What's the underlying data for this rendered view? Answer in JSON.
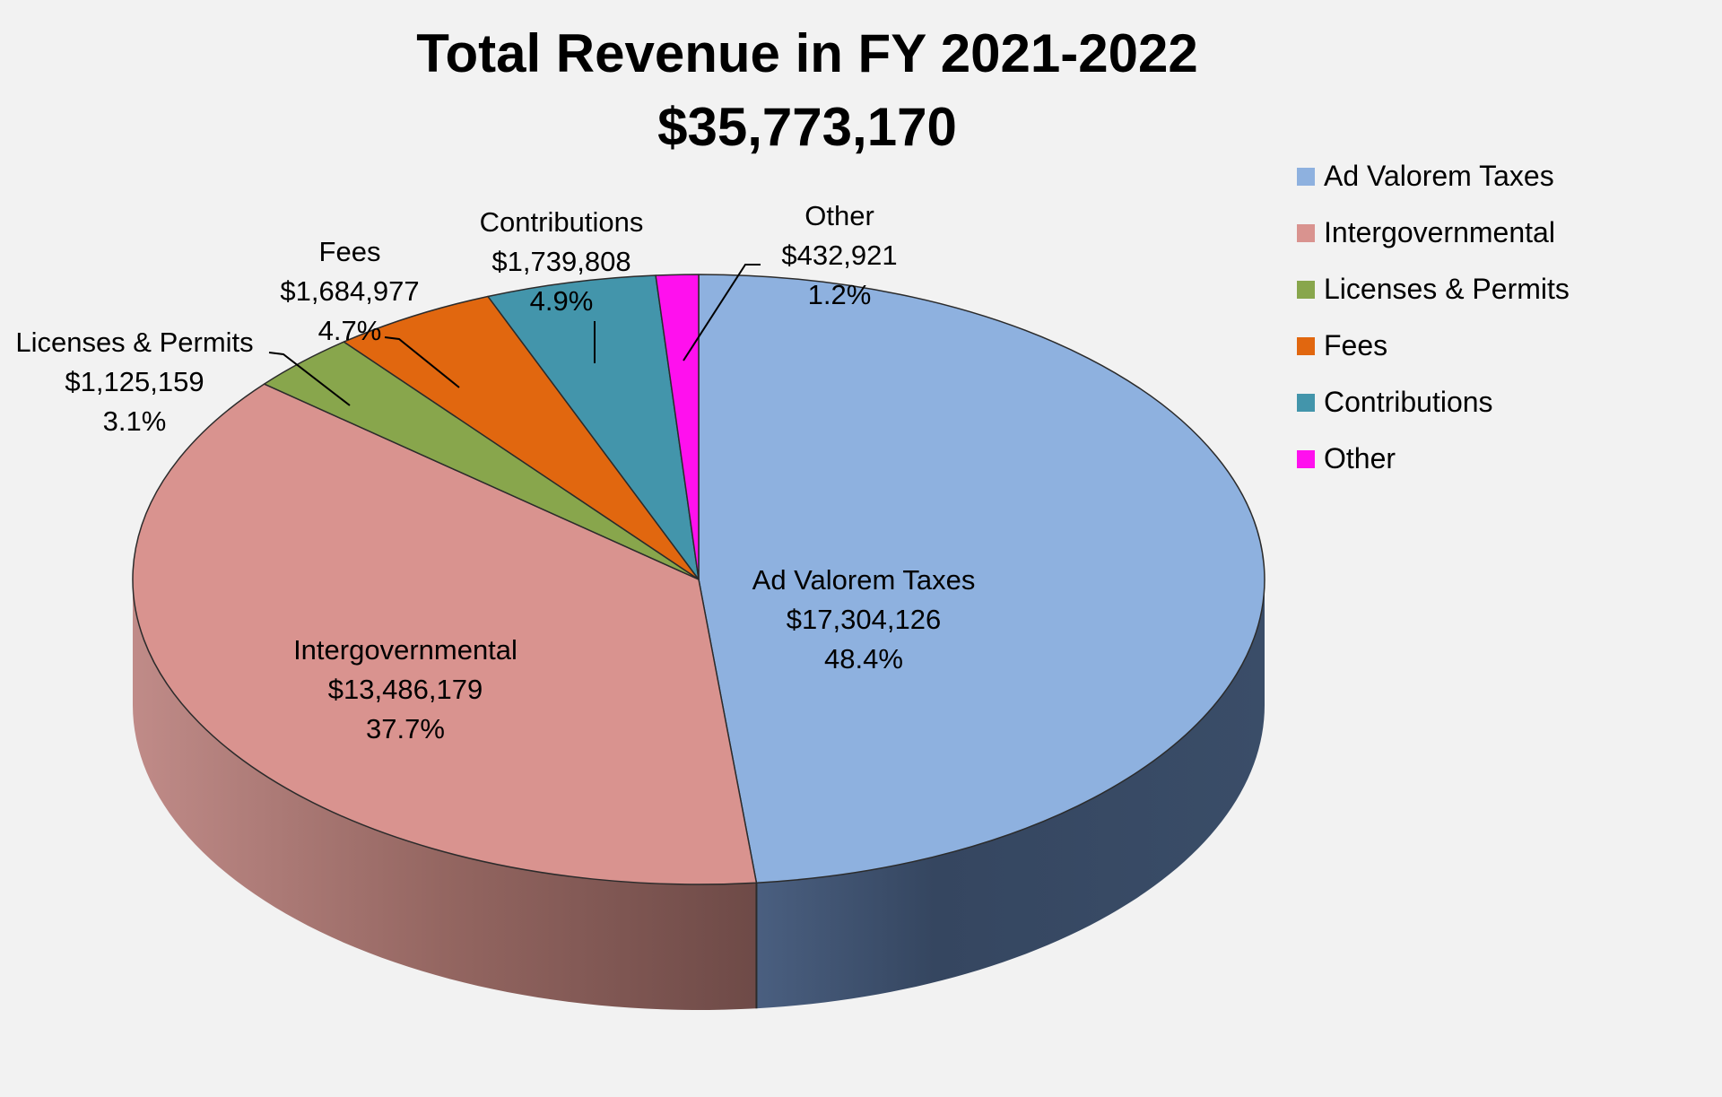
{
  "chart_data": {
    "type": "pie",
    "title": "Total Revenue in FY 2021-2022",
    "subtitle": "$35,773,170",
    "legend_position": "right",
    "slices": [
      {
        "name": "Ad Valorem Taxes",
        "value": 17304126,
        "value_label": "$17,304,126",
        "percent": 48.4,
        "percent_label": "48.4%",
        "color": "#8eb1df"
      },
      {
        "name": "Intergovernmental",
        "value": 13486179,
        "value_label": "$13,486,179",
        "percent": 37.7,
        "percent_label": "37.7%",
        "color": "#d9938f"
      },
      {
        "name": "Licenses & Permits",
        "value": 1125159,
        "value_label": "$1,125,159",
        "percent": 3.1,
        "percent_label": "3.1%",
        "color": "#88a64c"
      },
      {
        "name": "Fees",
        "value": 1684977,
        "value_label": "$1,684,977",
        "percent": 4.7,
        "percent_label": "4.7%",
        "color": "#e1670f"
      },
      {
        "name": "Contributions",
        "value": 1739808,
        "value_label": "$1,739,808",
        "percent": 4.9,
        "percent_label": "4.9%",
        "color": "#4395ab"
      },
      {
        "name": "Other",
        "value": 432921,
        "value_label": "$432,921",
        "percent": 1.2,
        "percent_label": "1.2%",
        "color": "#ff10ee"
      }
    ]
  }
}
